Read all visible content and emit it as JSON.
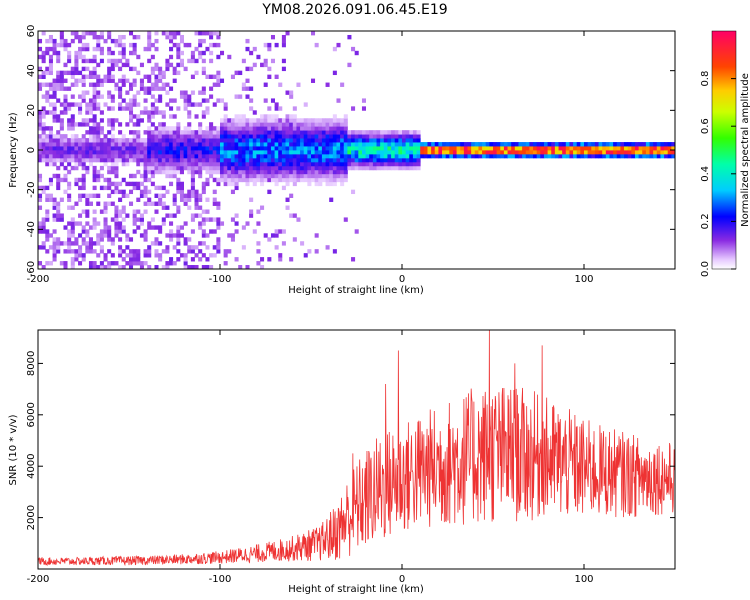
{
  "title": "YM08.2026.091.06.45.E19",
  "colorbar": {
    "label": "Normalized spectral amplitude",
    "ticks": [
      "0.0",
      "0.2",
      "0.4",
      "0.6",
      "0.8"
    ],
    "tick_values": [
      0,
      0.2,
      0.4,
      0.6,
      0.8
    ],
    "range": [
      0,
      1
    ]
  },
  "chart_data": [
    {
      "type": "heatmap",
      "name": "spectrogram",
      "xlabel": "Height of straight line (km)",
      "ylabel": "Frequency (Hz)",
      "xlim": [
        -200,
        150
      ],
      "ylim": [
        -60,
        60
      ],
      "xticks": [
        -200,
        -100,
        0,
        100
      ],
      "xtick_labels": [
        "-200",
        "-100",
        "0",
        "100"
      ],
      "yticks": [
        -60,
        -40,
        -20,
        0,
        20,
        40,
        60
      ],
      "ytick_labels": [
        "-60",
        "-40",
        "-20",
        "0",
        "20",
        "40",
        "60"
      ],
      "colorscale": "rainbow (violet=0 to magenta=1)",
      "features": [
        {
          "x_range": [
            -200,
            -100
          ],
          "frequency_range": [
            -60,
            60
          ],
          "amplitude": "scattered low (0.0-0.15)"
        },
        {
          "x_range": [
            -140,
            -30
          ],
          "frequency_range": [
            -15,
            15
          ],
          "amplitude": "band 0.1-0.4"
        },
        {
          "x_range": [
            -30,
            10
          ],
          "frequency_range": [
            -8,
            8
          ],
          "amplitude": "band 0.2-0.6"
        },
        {
          "x_range": [
            10,
            150
          ],
          "frequency_range": [
            -3,
            3
          ],
          "amplitude": "narrow line 0.6-0.95"
        }
      ]
    },
    {
      "type": "line",
      "name": "snr",
      "xlabel": "Height of straight line (km)",
      "ylabel": "SNR (10 * v/v)",
      "xlim": [
        -200,
        150
      ],
      "ylim": [
        0,
        9300
      ],
      "xticks": [
        -200,
        -100,
        0,
        100
      ],
      "xtick_labels": [
        "-200",
        "-100",
        "0",
        "100"
      ],
      "yticks": [
        2000,
        4000,
        6000,
        8000
      ],
      "ytick_labels": [
        "2000",
        "4000",
        "6000",
        "8000"
      ],
      "color": "#ee3333",
      "x": [
        -200,
        -180,
        -160,
        -140,
        -120,
        -100,
        -80,
        -60,
        -45,
        -35,
        -30,
        -25,
        -20,
        -15,
        -10,
        -5,
        0,
        10,
        20,
        30,
        40,
        50,
        60,
        70,
        80,
        90,
        100,
        110,
        120,
        130,
        140,
        150
      ],
      "y": [
        300,
        300,
        320,
        330,
        380,
        450,
        600,
        800,
        1000,
        1500,
        2000,
        2400,
        2700,
        3000,
        3200,
        3400,
        3500,
        3800,
        4000,
        4200,
        4400,
        4500,
        4500,
        4400,
        4300,
        4100,
        3900,
        3800,
        3700,
        3600,
        3600,
        3500
      ],
      "spread": [
        150,
        150,
        170,
        180,
        200,
        250,
        350,
        500,
        700,
        1200,
        1600,
        1800,
        2000,
        2100,
        2200,
        2200,
        2200,
        2300,
        2400,
        2600,
        2700,
        2800,
        2700,
        2600,
        2400,
        2200,
        2000,
        1800,
        1700,
        1600,
        1500,
        1400
      ],
      "peaks": [
        {
          "x": -27,
          "y": 4500
        },
        {
          "x": -9,
          "y": 7200
        },
        {
          "x": -2,
          "y": 8500
        },
        {
          "x": 48,
          "y": 9300
        },
        {
          "x": 62,
          "y": 8000
        },
        {
          "x": 77,
          "y": 8700
        }
      ]
    }
  ]
}
